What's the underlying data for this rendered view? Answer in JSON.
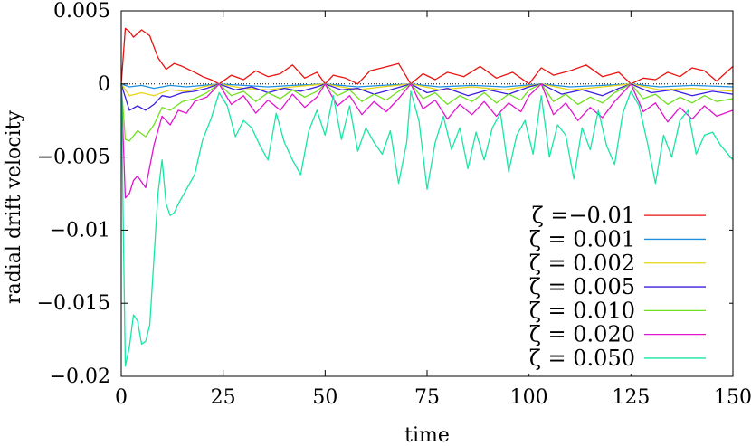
{
  "chart_data": {
    "type": "line",
    "title": "",
    "xlabel": "time",
    "ylabel": "radial drift velocity",
    "xlim": [
      0,
      150
    ],
    "ylim": [
      -0.02,
      0.005
    ],
    "x_ticks": [
      0,
      25,
      50,
      75,
      100,
      125,
      150
    ],
    "x_tick_labels": [
      "0",
      "25",
      "50",
      "75",
      "100",
      "125",
      "150"
    ],
    "y_ticks": [
      0.005,
      0,
      -0.005,
      -0.01,
      -0.015,
      -0.02
    ],
    "y_tick_labels": [
      "0.005",
      "0",
      "−0.005",
      "−0.01",
      "−0.015",
      "−0.02"
    ],
    "legend_position": "bottom-right",
    "grid": false,
    "reference_line": {
      "y": 0,
      "style": "dotted",
      "color": "#000000"
    },
    "series": [
      {
        "name": "ζ =−0.01",
        "color": "#e8120f",
        "x": [
          0,
          1,
          2,
          3,
          5,
          7,
          9,
          11,
          13,
          15,
          18,
          20,
          22,
          24,
          27,
          30,
          33,
          36,
          39,
          42,
          45,
          48,
          50,
          52,
          55,
          58,
          61,
          64,
          68,
          71,
          74,
          77,
          80,
          84,
          88,
          92,
          96,
          100,
          103,
          106,
          110,
          114,
          118,
          122,
          125,
          128,
          131,
          134,
          137,
          140,
          143,
          146,
          150
        ],
        "y": [
          0,
          0.0038,
          0.0036,
          0.0032,
          0.0037,
          0.0033,
          0.0018,
          0.001,
          0.0014,
          0.0012,
          0.0008,
          0.0005,
          0.0003,
          0.0,
          0.0006,
          0.0003,
          0.0009,
          0.0005,
          0.0007,
          0.0013,
          0.0004,
          0.0008,
          0.0,
          0.0006,
          0.0004,
          0.0,
          0.0009,
          0.0011,
          0.0014,
          0.0,
          0.0007,
          0.0003,
          0.0008,
          0.0005,
          0.0012,
          0.0004,
          0.0008,
          0.0,
          0.0011,
          0.0006,
          0.0009,
          0.0013,
          0.0005,
          0.0008,
          0.0,
          0.0004,
          0.0003,
          0.0008,
          0.0005,
          0.0011,
          0.0009,
          0.0002,
          0.0012
        ]
      },
      {
        "name": "ζ = 0.001",
        "color": "#1a8fe0",
        "x": [
          0,
          2,
          5,
          8,
          12,
          16,
          20,
          24,
          30,
          36,
          42,
          50,
          58,
          64,
          71,
          78,
          86,
          94,
          103,
          110,
          118,
          125,
          132,
          140,
          150
        ],
        "y": [
          0,
          -0.0002,
          -0.0001,
          -0.0003,
          -0.0001,
          -0.0002,
          -0.0001,
          0.0,
          -0.0001,
          -0.0002,
          -0.0001,
          0.0,
          -0.0002,
          -0.0001,
          0.0,
          -0.0002,
          -0.0001,
          -0.0002,
          0.0,
          -0.0002,
          -0.0001,
          0.0,
          -0.0002,
          -0.0001,
          -0.0002
        ]
      },
      {
        "name": "ζ = 0.002",
        "color": "#e8d415",
        "x": [
          0,
          2,
          5,
          8,
          12,
          16,
          20,
          24,
          30,
          36,
          42,
          50,
          58,
          64,
          71,
          78,
          86,
          94,
          103,
          110,
          118,
          125,
          132,
          140,
          150
        ],
        "y": [
          0,
          -0.0008,
          -0.0006,
          -0.0008,
          -0.0004,
          -0.0005,
          -0.0002,
          0.0,
          -0.0003,
          -0.0004,
          -0.0002,
          0.0,
          -0.0004,
          -0.0002,
          0.0,
          -0.0004,
          -0.0002,
          -0.0004,
          0.0,
          -0.0004,
          -0.0002,
          0.0,
          -0.0004,
          -0.0003,
          -0.0005
        ]
      },
      {
        "name": "ζ = 0.005",
        "color": "#3a1ee0",
        "x": [
          0,
          2,
          4,
          6,
          8,
          10,
          12,
          15,
          18,
          21,
          24,
          28,
          32,
          36,
          40,
          44,
          48,
          50,
          54,
          58,
          62,
          66,
          71,
          75,
          80,
          85,
          90,
          95,
          100,
          103,
          108,
          113,
          118,
          122,
          125,
          130,
          135,
          140,
          145,
          150
        ],
        "y": [
          0,
          -0.0018,
          -0.0015,
          -0.0018,
          -0.0014,
          -0.0008,
          -0.0009,
          -0.0006,
          -0.0005,
          -0.0003,
          0.0,
          -0.0004,
          -0.0002,
          -0.0006,
          -0.0003,
          -0.0005,
          -0.0002,
          0.0,
          -0.0004,
          -0.0003,
          -0.0007,
          -0.0004,
          0.0,
          -0.0006,
          -0.0003,
          -0.0008,
          -0.0004,
          -0.0007,
          -0.0002,
          0.0,
          -0.0007,
          -0.0004,
          -0.0008,
          -0.0003,
          0.0,
          -0.0006,
          -0.0004,
          -0.0008,
          -0.0005,
          -0.0007
        ]
      },
      {
        "name": "ζ = 0.010",
        "color": "#6fe01e",
        "x": [
          0,
          1,
          2,
          4,
          6,
          8,
          10,
          12,
          15,
          18,
          21,
          24,
          27,
          30,
          33,
          36,
          39,
          42,
          45,
          48,
          50,
          53,
          56,
          59,
          62,
          65,
          68,
          71,
          74,
          77,
          80,
          83,
          86,
          89,
          92,
          95,
          98,
          100,
          103,
          106,
          109,
          112,
          115,
          118,
          121,
          125,
          128,
          131,
          134,
          137,
          140,
          143,
          146,
          150
        ],
        "y": [
          0,
          -0.0038,
          -0.0039,
          -0.0032,
          -0.0036,
          -0.0028,
          -0.0016,
          -0.0018,
          -0.0012,
          -0.001,
          -0.0006,
          0.0,
          -0.0008,
          -0.0005,
          -0.0012,
          -0.0006,
          -0.001,
          -0.0004,
          -0.0009,
          -0.0005,
          0.0,
          -0.0008,
          -0.0004,
          -0.0012,
          -0.0007,
          -0.0011,
          -0.0005,
          0.0,
          -0.001,
          -0.0006,
          -0.0014,
          -0.0008,
          -0.0012,
          -0.0006,
          -0.0013,
          -0.0007,
          -0.0011,
          -0.0004,
          0.0,
          -0.0012,
          -0.0007,
          -0.0014,
          -0.0009,
          -0.0013,
          -0.0006,
          0.0,
          -0.001,
          -0.0007,
          -0.0014,
          -0.0009,
          -0.0013,
          -0.0008,
          -0.0012,
          -0.001
        ]
      },
      {
        "name": "ζ = 0.020",
        "color": "#e016cf",
        "x": [
          0,
          1,
          2,
          3,
          4,
          6,
          8,
          10,
          12,
          14,
          16,
          18,
          21,
          24,
          27,
          30,
          33,
          36,
          39,
          42,
          45,
          48,
          50,
          53,
          56,
          59,
          62,
          65,
          68,
          71,
          74,
          77,
          80,
          83,
          86,
          89,
          92,
          95,
          98,
          100,
          103,
          106,
          109,
          112,
          115,
          118,
          121,
          125,
          128,
          131,
          134,
          137,
          140,
          143,
          146,
          150
        ],
        "y": [
          0,
          -0.0078,
          -0.0075,
          -0.0066,
          -0.0063,
          -0.0071,
          -0.0042,
          -0.0022,
          -0.0028,
          -0.0018,
          -0.002,
          -0.0012,
          -0.0009,
          0.0,
          -0.0014,
          -0.0008,
          -0.002,
          -0.0011,
          -0.0018,
          -0.0007,
          -0.0016,
          -0.0009,
          0.0,
          -0.0015,
          -0.0008,
          -0.0021,
          -0.0012,
          -0.0019,
          -0.001,
          0.0,
          -0.0017,
          -0.0011,
          -0.0024,
          -0.0014,
          -0.0021,
          -0.0012,
          -0.0022,
          -0.0013,
          -0.0019,
          -0.0008,
          0.0,
          -0.0021,
          -0.0013,
          -0.0025,
          -0.0016,
          -0.0023,
          -0.0012,
          0.0,
          -0.0019,
          -0.0013,
          -0.0026,
          -0.0016,
          -0.0024,
          -0.0015,
          -0.0022,
          -0.0018
        ]
      },
      {
        "name": "ζ = 0.050",
        "color": "#17e6a5",
        "x": [
          0,
          1,
          2,
          3,
          4,
          5,
          6,
          7,
          8,
          9,
          10,
          11,
          12,
          13,
          14,
          16,
          18,
          20,
          22,
          24,
          26,
          28,
          30,
          32,
          34,
          36,
          38,
          40,
          42,
          44,
          46,
          48,
          50,
          52,
          54,
          56,
          58,
          60,
          62,
          64,
          66,
          68,
          70,
          71,
          73,
          75,
          77,
          79,
          81,
          83,
          85,
          87,
          89,
          91,
          93,
          95,
          97,
          99,
          101,
          103,
          105,
          107,
          109,
          111,
          113,
          115,
          117,
          119,
          121,
          123,
          125,
          127,
          129,
          131,
          133,
          135,
          137,
          139,
          141,
          143,
          145,
          147,
          150
        ],
        "y": [
          0,
          -0.0193,
          -0.018,
          -0.0158,
          -0.0162,
          -0.0178,
          -0.0176,
          -0.0165,
          -0.012,
          -0.0075,
          -0.0052,
          -0.0082,
          -0.009,
          -0.0088,
          -0.0082,
          -0.0072,
          -0.0062,
          -0.0038,
          -0.0024,
          -0.0006,
          -0.0015,
          -0.0036,
          -0.0025,
          -0.003,
          -0.0042,
          -0.0052,
          -0.002,
          -0.004,
          -0.0052,
          -0.0062,
          -0.0032,
          -0.0018,
          -0.0035,
          -0.0008,
          -0.0038,
          -0.0015,
          -0.0046,
          -0.003,
          -0.004,
          -0.0048,
          -0.0032,
          -0.0068,
          -0.004,
          -0.0005,
          -0.0025,
          -0.0072,
          -0.004,
          -0.0022,
          -0.0045,
          -0.003,
          -0.0058,
          -0.0033,
          -0.0052,
          -0.003,
          -0.002,
          -0.006,
          -0.0035,
          -0.0025,
          -0.0048,
          -0.0008,
          -0.005,
          -0.0028,
          -0.0035,
          -0.0065,
          -0.003,
          -0.0045,
          -0.0018,
          -0.0042,
          -0.0055,
          -0.002,
          -0.0005,
          -0.0015,
          -0.004,
          -0.0068,
          -0.0035,
          -0.005,
          -0.0025,
          -0.0018,
          -0.0048,
          -0.0035,
          -0.0033,
          -0.0042,
          -0.0052
        ]
      }
    ]
  }
}
